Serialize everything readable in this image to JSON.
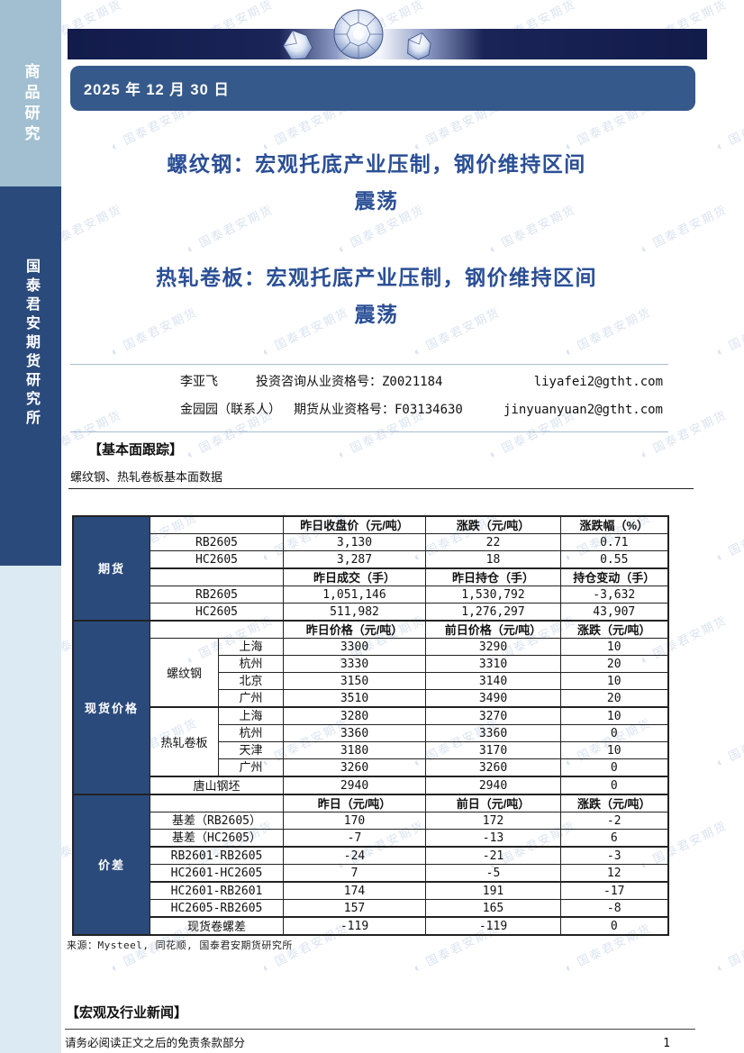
{
  "page": {
    "date": "2025 年 12 月 30 日",
    "footer_note": "请务必阅读正文之后的免责条款部分",
    "page_number": "1"
  },
  "sidebar": {
    "top_label": "商品研究",
    "bottom_label": "国泰君安期货研究所"
  },
  "titles": {
    "title1_lines": [
      "螺纹钢：宏观托底产业压制，钢价维持区间",
      "震荡"
    ],
    "title2_lines": [
      "热轧卷板：宏观托底产业压制，钢价维持区间",
      "震荡"
    ]
  },
  "analysts": [
    {
      "name": "李亚飞",
      "credential": "投资咨询从业资格号：Z0021184",
      "email": "liyafei2@gtht.com"
    },
    {
      "name": "金园园（联系人）",
      "credential": "期货从业资格号：F03134630",
      "email": "jinyuanyuan2@gtht.com"
    }
  ],
  "sections": {
    "fundamentals_heading": "【基本面跟踪】",
    "table_caption": "螺纹钢、热轧卷板基本面数据",
    "source_note": "来源：Mysteel, 同花顺, 国泰君安期货研究所",
    "news_heading": "【宏观及行业新闻】"
  },
  "watermark": {
    "text": "国泰君安期货"
  },
  "colors": {
    "title_blue": "#2b4f96",
    "banner_navy": "#131c4c",
    "date_bar_blue": "#35598a",
    "sidebar_top_blue": "#a2bfd1",
    "sidebar_mid_navy": "#2b4a7c",
    "sidebar_bottom_blue": "#dceaf3",
    "table_section_navy": "#2b4a7c",
    "watermark_blue": "#9fb8d8"
  },
  "table": {
    "sections": {
      "futures": "期货",
      "spot": "现货价格",
      "spread": "价差"
    },
    "products": {
      "rebar": "螺纹钢",
      "hrc": "热轧卷板"
    },
    "fut_head": [
      "昨日收盘价（元/吨）",
      "涨跌（元/吨）",
      "涨跌幅（%）"
    ],
    "fut": [
      [
        "RB2605",
        "3,130",
        "22",
        "0.71"
      ],
      [
        "HC2605",
        "3,287",
        "18",
        "0.55"
      ]
    ],
    "fut_head2": [
      "昨日成交（手）",
      "昨日持仓（手）",
      "持仓变动（手）"
    ],
    "fut2": [
      [
        "RB2605",
        "1,051,146",
        "1,530,792",
        "-3,632"
      ],
      [
        "HC2605",
        "511,982",
        "1,276,297",
        "43,907"
      ]
    ],
    "spot_head": [
      "昨日价格（元/吨）",
      "前日价格（元/吨）",
      "涨跌（元/吨）"
    ],
    "rebar": [
      [
        "上海",
        "3300",
        "3290",
        "10"
      ],
      [
        "杭州",
        "3330",
        "3310",
        "20"
      ],
      [
        "北京",
        "3150",
        "3140",
        "10"
      ],
      [
        "广州",
        "3510",
        "3490",
        "20"
      ]
    ],
    "hrc": [
      [
        "上海",
        "3280",
        "3270",
        "10"
      ],
      [
        "杭州",
        "3360",
        "3360",
        "0"
      ],
      [
        "天津",
        "3180",
        "3170",
        "10"
      ],
      [
        "广州",
        "3260",
        "3260",
        "0"
      ]
    ],
    "billet": [
      "唐山钢坯",
      "2940",
      "2940",
      "0"
    ],
    "spread_head": [
      "昨日（元/吨）",
      "前日（元/吨）",
      "涨跌（元/吨）"
    ],
    "spread": [
      [
        "基差（RB2605）",
        "170",
        "172",
        "-2"
      ],
      [
        "基差（HC2605）",
        "-7",
        "-13",
        "6"
      ],
      [
        "RB2601-RB2605",
        "-24",
        "-21",
        "-3"
      ],
      [
        "HC2601-HC2605",
        "7",
        "-5",
        "12"
      ],
      [
        "HC2601-RB2601",
        "174",
        "191",
        "-17"
      ],
      [
        "HC2605-RB2605",
        "157",
        "165",
        "-8"
      ],
      [
        "现货卷螺差",
        "-119",
        "-119",
        "0"
      ]
    ]
  }
}
